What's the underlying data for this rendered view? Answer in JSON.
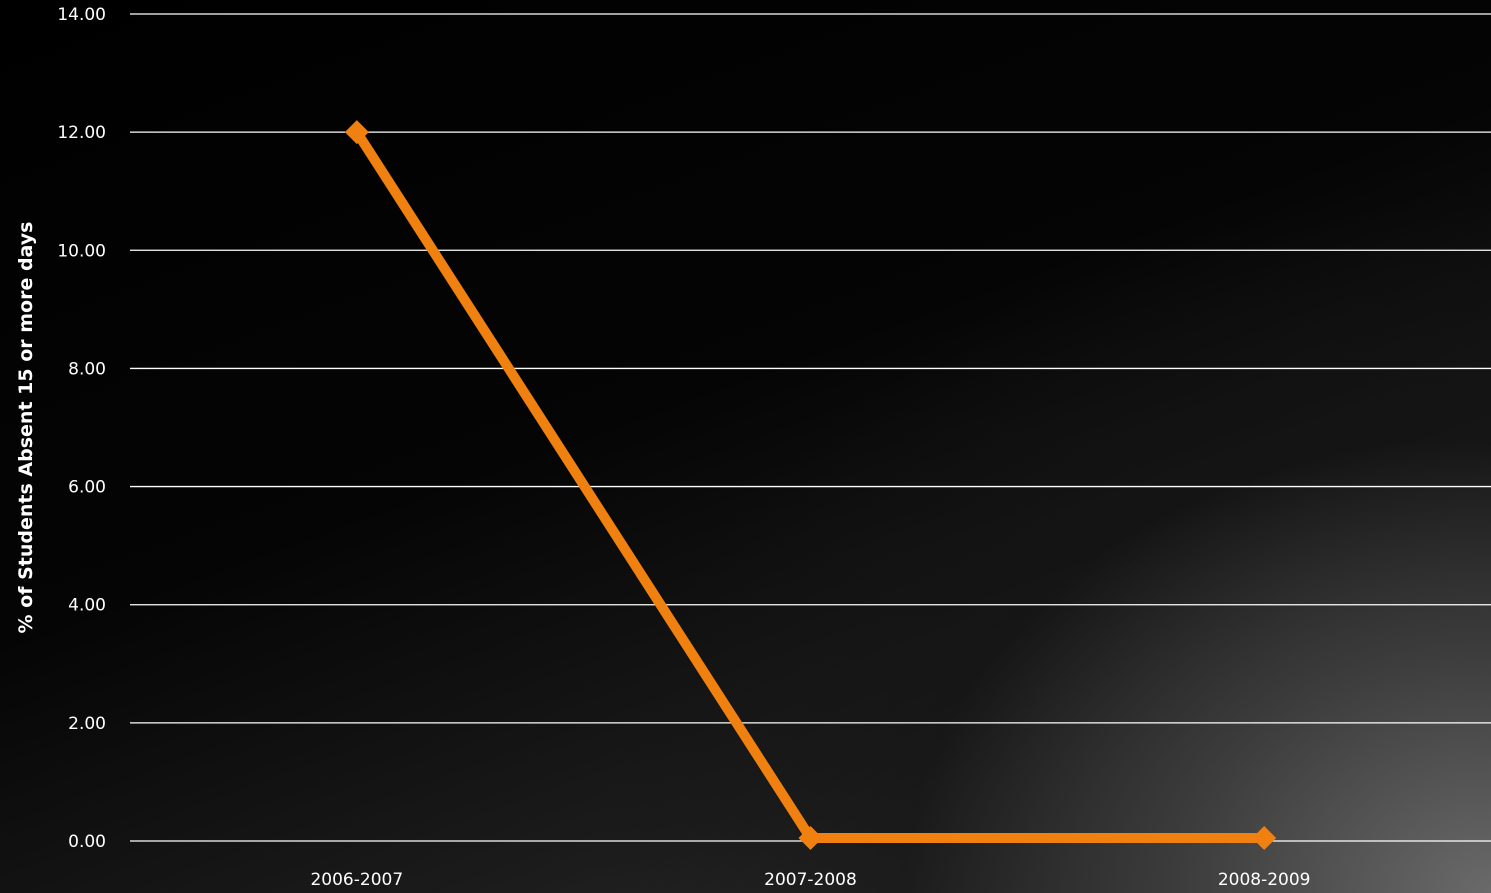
{
  "chart_data": {
    "type": "line",
    "categories": [
      "2006-2007",
      "2007-2008",
      "2008-2009"
    ],
    "series": [
      {
        "name": "",
        "values": [
          12.0,
          0.05,
          0.05
        ],
        "color": "#F08010"
      }
    ],
    "ylabel": "% of Students Absent 15 or more days",
    "xlabel": "",
    "ylim": [
      0,
      14
    ],
    "yticks": [
      "0.00",
      "2.00",
      "4.00",
      "6.00",
      "8.00",
      "10.00",
      "12.00",
      "14.00"
    ],
    "grid": true,
    "marker": "diamond",
    "gridColor": "#ffffff",
    "textColor": "#ffffff"
  }
}
